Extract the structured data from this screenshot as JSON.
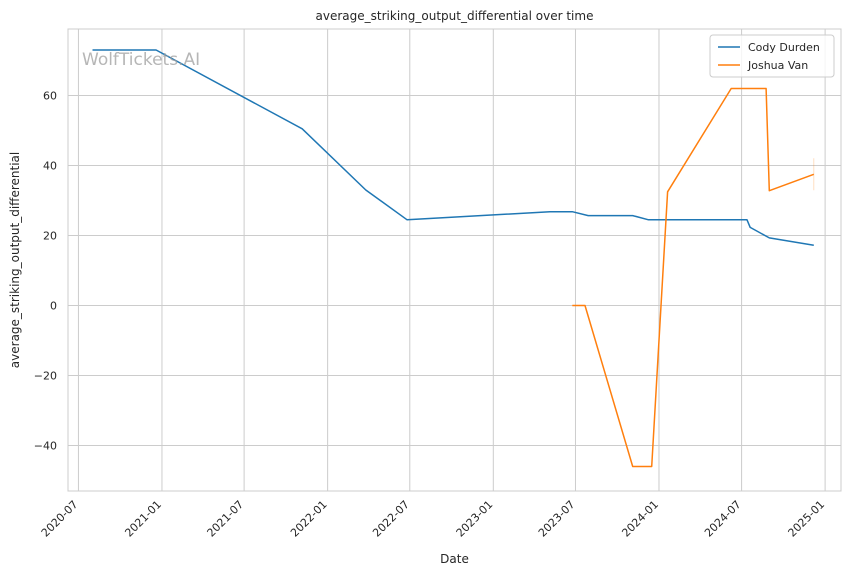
{
  "chart_data": {
    "type": "line",
    "title": "average_striking_output_differential over time",
    "xlabel": "Date",
    "ylabel": "average_striking_output_differential",
    "watermark": "WolfTickets.AI",
    "xlim": [
      "2020-06-08",
      "2025-02-05"
    ],
    "ylim": [
      -53,
      79
    ],
    "x_ticks": [
      "2020-07",
      "2021-01",
      "2021-07",
      "2022-01",
      "2022-07",
      "2023-01",
      "2023-07",
      "2024-01",
      "2024-07",
      "2025-01"
    ],
    "y_ticks": [
      -40,
      -20,
      0,
      20,
      40,
      60
    ],
    "grid": true,
    "legend_position": "top-right",
    "series": [
      {
        "name": "Cody Durden",
        "color": "#1f77b4",
        "points": [
          {
            "x": "2020-08-01",
            "y": 73.0
          },
          {
            "x": "2020-12-19",
            "y": 73.0
          },
          {
            "x": "2021-11-06",
            "y": 50.5
          },
          {
            "x": "2022-03-26",
            "y": 33.0
          },
          {
            "x": "2022-06-25",
            "y": 24.5
          },
          {
            "x": "2023-05-06",
            "y": 26.8
          },
          {
            "x": "2023-06-24",
            "y": 26.8
          },
          {
            "x": "2023-07-29",
            "y": 25.7
          },
          {
            "x": "2023-11-04",
            "y": 25.7
          },
          {
            "x": "2023-12-09",
            "y": 24.5
          },
          {
            "x": "2024-07-13",
            "y": 24.5
          },
          {
            "x": "2024-07-20",
            "y": 22.3
          },
          {
            "x": "2024-08-31",
            "y": 19.3
          },
          {
            "x": "2024-12-07",
            "y": 17.2
          }
        ]
      },
      {
        "name": "Joshua Van",
        "color": "#ff7f0e",
        "points": [
          {
            "x": "2023-06-24",
            "y": 0.0
          },
          {
            "x": "2023-07-22",
            "y": 0.0
          },
          {
            "x": "2023-11-04",
            "y": -46.0
          },
          {
            "x": "2023-12-16",
            "y": -46.0
          },
          {
            "x": "2024-01-20",
            "y": 32.5
          },
          {
            "x": "2024-06-08",
            "y": 62.0
          },
          {
            "x": "2024-08-24",
            "y": 62.0
          },
          {
            "x": "2024-08-31",
            "y": 32.8
          },
          {
            "x": "2024-12-07",
            "y": 37.5
          }
        ]
      }
    ]
  }
}
